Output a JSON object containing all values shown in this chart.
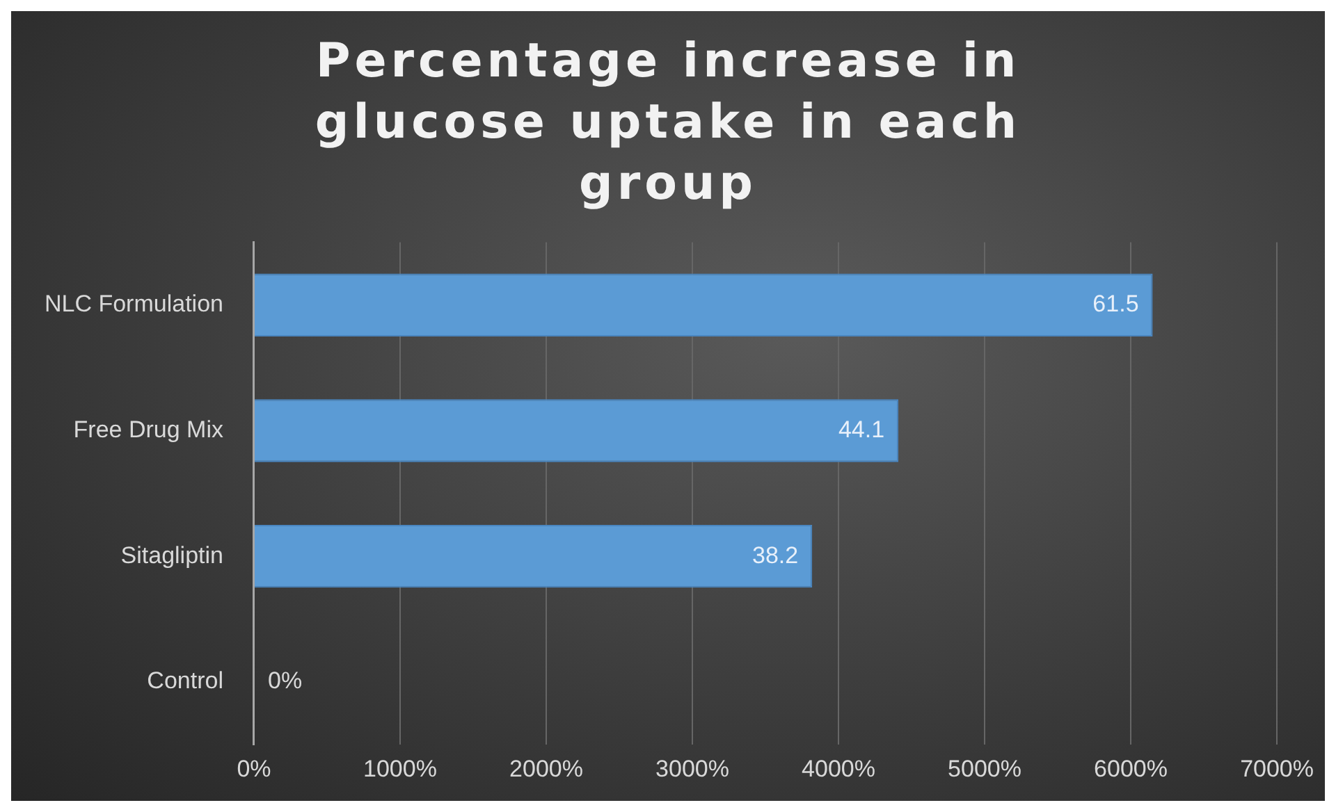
{
  "chart_data": {
    "type": "bar",
    "orientation": "horizontal",
    "title": "Percentage increase in glucose uptake in each group",
    "categories": [
      "NLC Formulation",
      "Free Drug Mix",
      "Sitagliptin",
      "Control"
    ],
    "values": [
      61.5,
      44.1,
      38.2,
      0
    ],
    "value_labels": [
      "61.5",
      "44.1",
      "38.2",
      "0%"
    ],
    "color": "#5b9bd5",
    "xlim": [
      0,
      70
    ],
    "xticks": [
      {
        "value": 0,
        "label": "0%"
      },
      {
        "value": 10,
        "label": "1000%"
      },
      {
        "value": 20,
        "label": "2000%"
      },
      {
        "value": 30,
        "label": "3000%"
      },
      {
        "value": 40,
        "label": "4000%"
      },
      {
        "value": 50,
        "label": "5000%"
      },
      {
        "value": 60,
        "label": "6000%"
      },
      {
        "value": 70,
        "label": "7000%"
      }
    ],
    "grid": "x",
    "legend": false
  }
}
